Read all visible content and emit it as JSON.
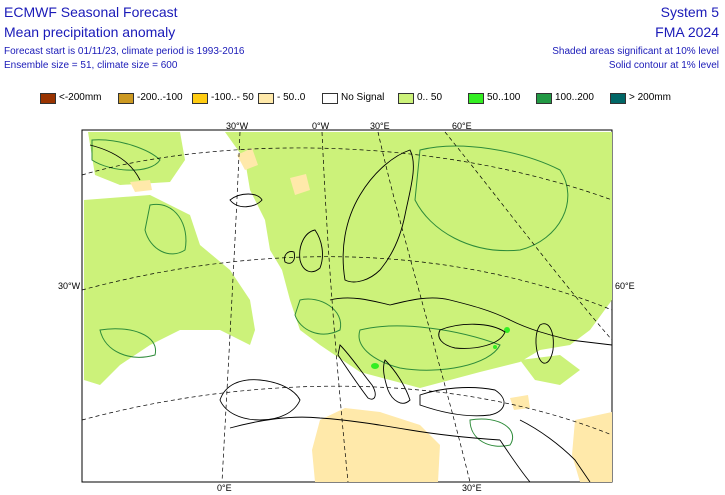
{
  "header": {
    "title_line1": "ECMWF Seasonal Forecast",
    "title_line2": "Mean precipitation anomaly",
    "info_line1": "Forecast start is 01/11/23, climate period is 1993-2016",
    "info_line2": "Ensemble size = 51, climate size = 600",
    "system": "System 5",
    "period": "FMA 2024",
    "sig_line1": "Shaded areas significant at 10% level",
    "sig_line2": "Solid contour at 1% level"
  },
  "legend": [
    {
      "label": "<-200mm",
      "color": "#993300"
    },
    {
      "label": "-200..-100",
      "color": "#cc9922"
    },
    {
      "label": "-100..- 50",
      "color": "#ffcc11"
    },
    {
      "label": "- 50..0",
      "color": "#ffe9aa"
    },
    {
      "label": "No Signal",
      "color": "#ffffff"
    },
    {
      "label": "0.. 50",
      "color": "#ccf27a"
    },
    {
      "label": "50..100",
      "color": "#33ee22"
    },
    {
      "label": "100..200",
      "color": "#229944"
    },
    {
      "label": "> 200mm",
      "color": "#006666"
    }
  ],
  "map": {
    "lon_labels_top": [
      "30°W",
      "0°W",
      "30°E",
      "60°E"
    ],
    "lat_labels_left": [
      "30°W"
    ],
    "lat_labels_right": [
      "60°E"
    ],
    "lon_labels_bottom": [
      "0°E",
      "30°E"
    ],
    "colors": {
      "positive": "#ccf27a",
      "positive_strong": "#33ee22",
      "negative": "#ffe9aa",
      "contour": "#2e8b3a",
      "coast": "#000000"
    }
  }
}
